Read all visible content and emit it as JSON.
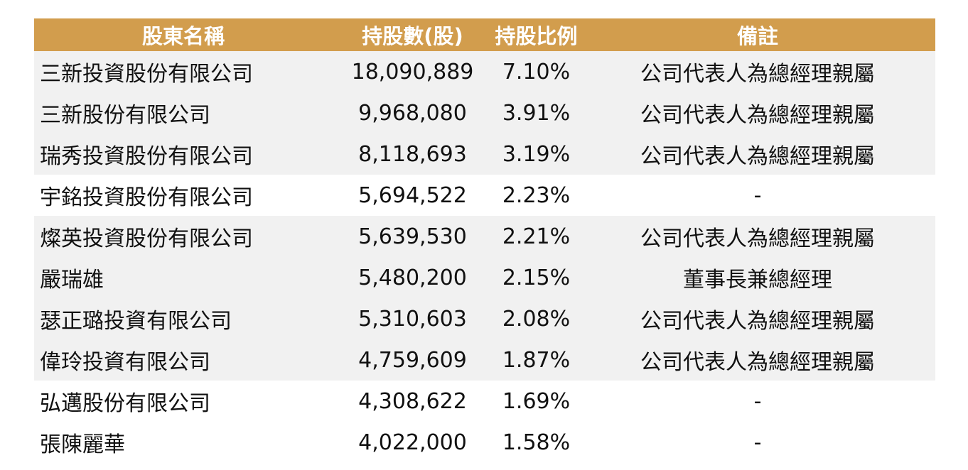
{
  "colors": {
    "header_bg": "#d29d4d",
    "header_text": "#ffffff",
    "shaded_row": "#f1f1f1"
  },
  "table": {
    "headers": [
      "股東名稱",
      "持股數(股)",
      "持股比例",
      "備註"
    ],
    "rows": [
      {
        "name": "三新投資股份有限公司",
        "shares": "18,090,889",
        "pct": "7.10%",
        "note": "公司代表人為總經理親屬",
        "shaded": true
      },
      {
        "name": "三新股份有限公司",
        "shares": "9,968,080",
        "pct": "3.91%",
        "note": "公司代表人為總經理親屬",
        "shaded": true
      },
      {
        "name": "瑞秀投資股份有限公司",
        "shares": "8,118,693",
        "pct": "3.19%",
        "note": "公司代表人為總經理親屬",
        "shaded": true
      },
      {
        "name": "宇銘投資股份有限公司",
        "shares": "5,694,522",
        "pct": "2.23%",
        "note": "-",
        "shaded": false
      },
      {
        "name": "燦英投資股份有限公司",
        "shares": "5,639,530",
        "pct": "2.21%",
        "note": "公司代表人為總經理親屬",
        "shaded": true
      },
      {
        "name": "嚴瑞雄",
        "shares": "5,480,200",
        "pct": "2.15%",
        "note": "董事長兼總經理",
        "shaded": true
      },
      {
        "name": "瑟正璐投資有限公司",
        "shares": "5,310,603",
        "pct": "2.08%",
        "note": "公司代表人為總經理親屬",
        "shaded": true
      },
      {
        "name": "偉玲投資有限公司",
        "shares": "4,759,609",
        "pct": "1.87%",
        "note": "公司代表人為總經理親屬",
        "shaded": true
      },
      {
        "name": "弘邁股份有限公司",
        "shares": "4,308,622",
        "pct": "1.69%",
        "note": "-",
        "shaded": false
      },
      {
        "name": "張陳麗華",
        "shares": "4,022,000",
        "pct": "1.58%",
        "note": "-",
        "shaded": false
      }
    ]
  }
}
